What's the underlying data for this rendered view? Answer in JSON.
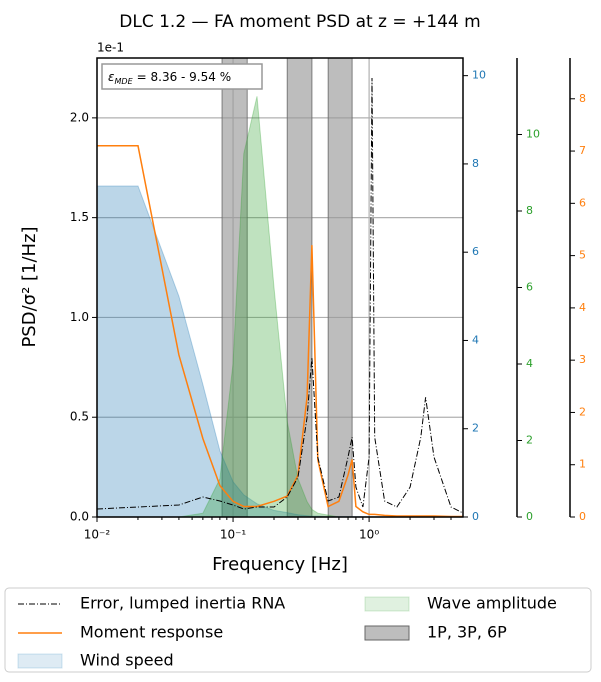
{
  "chart_data": {
    "type": "line",
    "title": "DLC 1.2 — FA moment PSD at z = +144 m",
    "xlabel": "Frequency [Hz]",
    "ylabel": "PSD/σ² [1/Hz]",
    "y_offset_label": "1e-1",
    "annotation": {
      "symbol": "ε",
      "subscript": "MDE",
      "text": "= 8.36 - 9.54 %"
    },
    "xscale": "log",
    "grid": true,
    "legend": "below",
    "xlim": [
      0.01,
      4.9
    ],
    "xticks": [
      {
        "value": 0.01,
        "label": "10⁻²"
      },
      {
        "value": 0.1,
        "label": "10⁻¹"
      },
      {
        "value": 1,
        "label": "10⁰"
      }
    ],
    "ylim": [
      0,
      2.3
    ],
    "yticks": [
      {
        "value": 0,
        "label": "0.0"
      },
      0.5,
      {
        "value": 1,
        "label": "1.0"
      },
      1.5,
      {
        "value": 2,
        "label": "2.0"
      }
    ],
    "y2lim": [
      0,
      10.4
    ],
    "y2ticks": [
      0,
      2,
      4,
      6,
      8,
      10
    ],
    "y2color": "#1f77b4",
    "y3lim": [
      0,
      12.0
    ],
    "y3ticks": [
      0,
      2,
      4,
      6,
      8,
      10
    ],
    "y3color": "#2ca02c",
    "y4lim": [
      0,
      8.78
    ],
    "y4ticks": [
      0,
      1,
      2,
      3,
      4,
      5,
      6,
      7,
      8
    ],
    "y4color": "#ff7f0e",
    "x": [
      0.01,
      0.02,
      0.04,
      0.06,
      0.08,
      0.1,
      0.12,
      0.15,
      0.2,
      0.25,
      0.3,
      0.35,
      0.38,
      0.42,
      0.5,
      0.6,
      0.7,
      0.75,
      0.8,
      0.9,
      1.0,
      1.05,
      1.1,
      1.3,
      1.6,
      2.0,
      2.4,
      2.6,
      3.0,
      4.0,
      4.9
    ],
    "bands": {
      "name": "1P, 3P, 6P",
      "color": "#999999",
      "ranges": [
        [
          0.083,
          0.127
        ],
        [
          0.25,
          0.38
        ],
        [
          0.5,
          0.75
        ]
      ]
    },
    "series": [
      {
        "name": "Error, lumped inertia RNA",
        "color": "#000000",
        "style": "dashdot",
        "axis": "y",
        "values": [
          0.04,
          0.05,
          0.06,
          0.1,
          0.08,
          0.06,
          0.04,
          0.05,
          0.05,
          0.1,
          0.2,
          0.5,
          0.8,
          0.3,
          0.08,
          0.1,
          0.3,
          0.4,
          0.15,
          0.05,
          0.3,
          2.2,
          0.4,
          0.08,
          0.05,
          0.15,
          0.4,
          0.6,
          0.3,
          0.05,
          0.02
        ]
      },
      {
        "name": "Moment response",
        "color": "#ff7f0e",
        "style": "line",
        "axis": "y4",
        "values": [
          7.1,
          7.1,
          3.1,
          1.5,
          0.6,
          0.3,
          0.2,
          0.2,
          0.3,
          0.4,
          0.8,
          2.3,
          5.2,
          1.1,
          0.2,
          0.3,
          0.8,
          1.1,
          0.2,
          0.1,
          0.05,
          0.05,
          0.05,
          0.03,
          0.02,
          0.02,
          0.02,
          0.02,
          0.02,
          0.01,
          0.01
        ]
      },
      {
        "name": "Wind speed",
        "color": "#1f77b4",
        "style": "area",
        "axis": "y2",
        "values": [
          7.5,
          7.5,
          5.0,
          3.0,
          1.5,
          0.8,
          0.5,
          0.3,
          0.15,
          0.1,
          0.05,
          0.03,
          0.02,
          0.02,
          0.01,
          0.01,
          0.01,
          0.01,
          0.01,
          0.01,
          0.01,
          0.01,
          0.01,
          0.01,
          0.01,
          0.01,
          0.01,
          0.01,
          0.01,
          0.01,
          0.01
        ]
      },
      {
        "name": "Wave amplitude",
        "color": "#2ca02c",
        "style": "area",
        "axis": "y3",
        "values": [
          0,
          0,
          0,
          0.1,
          1.0,
          4.0,
          9.5,
          11.0,
          6.0,
          2.5,
          1.0,
          0.4,
          0.2,
          0.1,
          0.05,
          0,
          0,
          0,
          0,
          0,
          0,
          0,
          0,
          0,
          0,
          0,
          0,
          0,
          0,
          0,
          0
        ]
      }
    ]
  }
}
